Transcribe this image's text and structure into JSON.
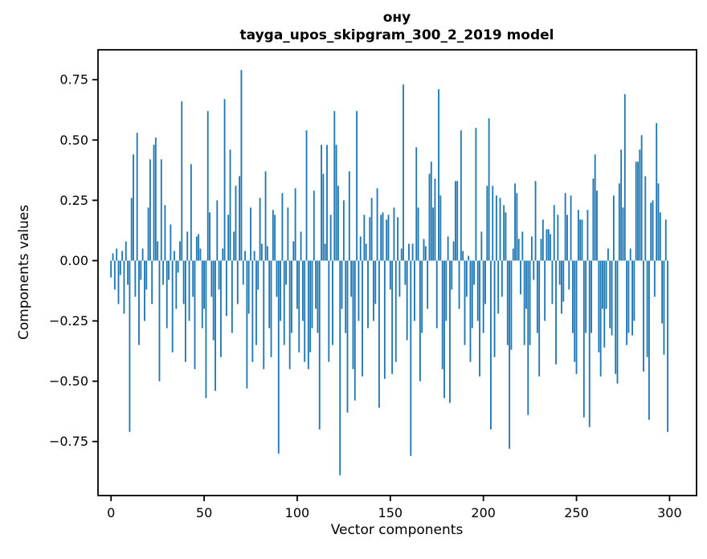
{
  "chart_data": {
    "type": "bar",
    "title": "ону",
    "subtitle": "tayga_upos_skipgram_300_2_2019 model",
    "xlabel": "Vector components",
    "ylabel": "Components values",
    "bar_color": "#1f77b4",
    "axis_color": "#000000",
    "background_color": "#ffffff",
    "grid": false,
    "legend": false,
    "xlim": [
      -7,
      314.5
    ],
    "ylim": [
      -0.974,
      0.874
    ],
    "x_tick_values": [
      0,
      50,
      100,
      150,
      200,
      250,
      300
    ],
    "x_tick_labels": [
      "0",
      "50",
      "100",
      "150",
      "200",
      "250",
      "300"
    ],
    "y_tick_values": [
      0.75,
      0.5,
      0.25,
      0,
      -0.25,
      -0.5,
      -0.75
    ],
    "y_tick_labels": [
      "0.75",
      "0.50",
      "0.25",
      "0.00",
      "−0.25",
      "−0.50",
      "−0.75"
    ],
    "x_description": "vector component index 0..299",
    "values": [
      -0.07,
      0.03,
      -0.12,
      0.05,
      -0.18,
      -0.06,
      0.04,
      -0.22,
      0.08,
      -0.1,
      -0.71,
      0.26,
      0.44,
      -0.15,
      0.53,
      -0.35,
      -0.08,
      0.05,
      -0.25,
      -0.12,
      0.22,
      0.42,
      -0.18,
      0.48,
      0.51,
      0.08,
      -0.5,
      0.42,
      -0.1,
      0.23,
      -0.28,
      -0.08,
      0.15,
      -0.38,
      0.04,
      -0.2,
      -0.05,
      0.08,
      0.66,
      -0.18,
      -0.42,
      0.12,
      -0.25,
      0.4,
      -0.15,
      -0.45,
      0.1,
      0.11,
      0.05,
      -0.28,
      -0.2,
      -0.57,
      0.62,
      0.2,
      -0.15,
      -0.33,
      -0.54,
      0.25,
      -0.12,
      -0.4,
      0.05,
      0.67,
      -0.23,
      0.19,
      0.46,
      -0.3,
      0.12,
      0.31,
      -0.18,
      0.35,
      0.79,
      -0.1,
      0.04,
      -0.53,
      -0.22,
      0.22,
      -0.42,
      0.04,
      -0.35,
      -0.12,
      0.26,
      0.07,
      -0.45,
      0.37,
      0.06,
      -0.28,
      -0.4,
      0.21,
      0.19,
      -0.15,
      -0.8,
      -0.25,
      0.28,
      -0.35,
      -0.1,
      0.22,
      -0.45,
      -0.3,
      0.08,
      0.3,
      -0.2,
      -0.38,
      0.12,
      -0.25,
      -0.42,
      0.54,
      -0.45,
      -0.38,
      -0.28,
      0.29,
      -0.2,
      -0.3,
      -0.7,
      0.48,
      0.36,
      0.07,
      0.48,
      -0.42,
      0.19,
      -0.35,
      0.62,
      0.48,
      0.31,
      -0.89,
      -0.2,
      0.25,
      -0.3,
      -0.63,
      0.37,
      -0.15,
      -0.45,
      -0.58,
      0.62,
      -0.25,
      0.1,
      -0.48,
      0.19,
      0.07,
      -0.28,
      0.18,
      0.26,
      -0.25,
      -0.18,
      0.3,
      -0.61,
      0.19,
      0.2,
      -0.49,
      0.17,
      0.19,
      -0.12,
      -0.47,
      0.22,
      -0.42,
      0.18,
      -0.15,
      0.05,
      0.73,
      -0.1,
      -0.33,
      0.07,
      -0.81,
      0.07,
      -0.25,
      0.47,
      0.22,
      -0.5,
      -0.3,
      0.09,
      0.06,
      -0.2,
      0.36,
      0.41,
      0.22,
      0.34,
      -0.28,
      0.71,
      0.27,
      -0.45,
      -0.57,
      -0.25,
      0.1,
      -0.59,
      -0.12,
      0.08,
      0.33,
      0.33,
      -0.2,
      0.54,
      0.04,
      -0.35,
      -0.15,
      0.02,
      -0.42,
      -0.28,
      -0.1,
      0.55,
      -0.25,
      -0.48,
      0.12,
      -0.3,
      -0.18,
      0.31,
      0.59,
      -0.7,
      0.31,
      -0.4,
      0.27,
      -0.22,
      0.26,
      -0.15,
      0.23,
      0.2,
      -0.35,
      -0.78,
      -0.37,
      0.05,
      0.32,
      0.28,
      0.09,
      -0.14,
      0.12,
      -0.35,
      -0.2,
      -0.64,
      -0.35,
      0.1,
      -0.08,
      0.33,
      -0.3,
      -0.48,
      0.09,
      0.17,
      -0.25,
      0.13,
      0.13,
      0.11,
      -0.18,
      0.23,
      -0.43,
      0.19,
      -0.1,
      -0.22,
      -0.17,
      0.28,
      0.19,
      -0.12,
      0.27,
      -0.3,
      -0.42,
      -0.47,
      0.21,
      0.17,
      0.17,
      -0.65,
      -0.3,
      0.21,
      -0.69,
      -0.3,
      0.34,
      0.44,
      0.29,
      -0.38,
      -0.48,
      -0.2,
      -0.36,
      -0.2,
      0.05,
      -0.28,
      -0.31,
      0.27,
      -0.47,
      -0.51,
      0.32,
      0.46,
      0.22,
      0.69,
      -0.35,
      -0.3,
      0.05,
      -0.31,
      -0.25,
      0.41,
      0.41,
      0.46,
      0.52,
      -0.46,
      0.35,
      -0.4,
      -0.66,
      0.24,
      0.25,
      -0.15,
      0.57,
      0.32,
      0.2,
      -0.26,
      -0.39,
      0.17,
      -0.71
    ]
  }
}
